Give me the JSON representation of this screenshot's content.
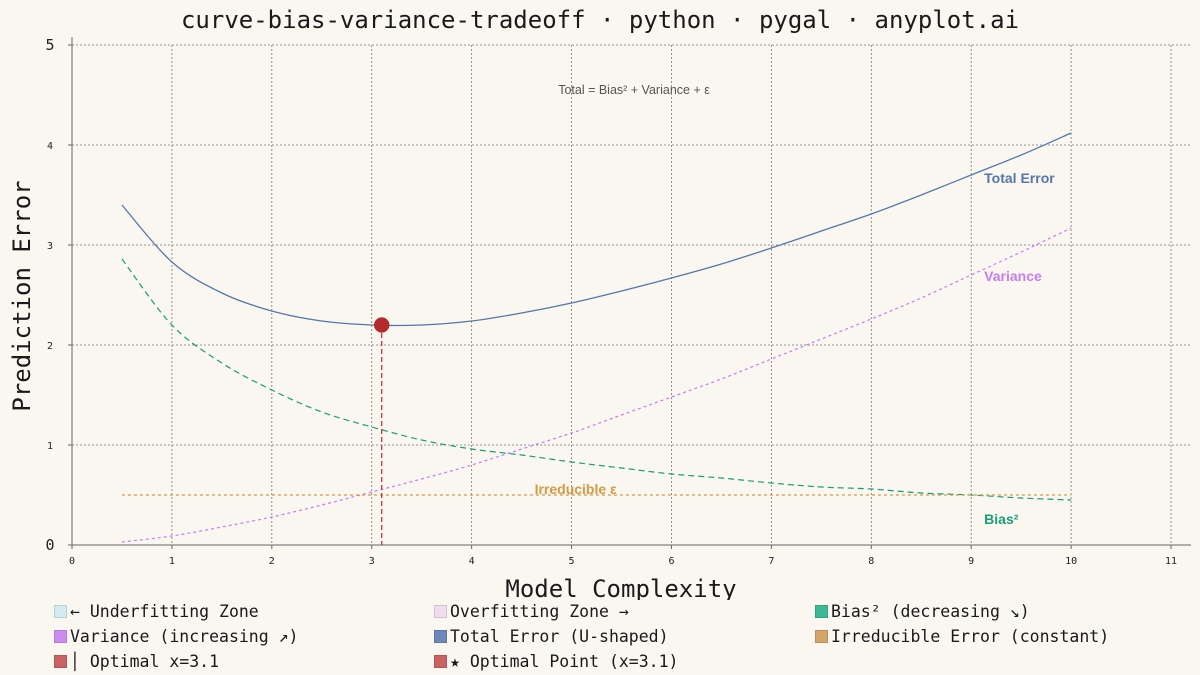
{
  "chart_data": {
    "type": "line",
    "title": "curve-bias-variance-tradeoff · python · pygal · anyplot.ai",
    "xlabel": "Model Complexity",
    "ylabel": "Prediction Error",
    "xlim": [
      0,
      11.2
    ],
    "ylim": [
      0,
      5
    ],
    "x_ticks": [
      "0",
      "1",
      "2",
      "3",
      "4",
      "5",
      "6",
      "7",
      "8",
      "9",
      "10",
      "11"
    ],
    "y_ticks": [
      "0",
      "1",
      "2",
      "3",
      "4",
      "5"
    ],
    "grid": true,
    "legend_position": "bottom",
    "annotation": "Total = Bias² + Variance + ε",
    "x": [
      0.5,
      1,
      1.5,
      2,
      2.5,
      3,
      3.5,
      4,
      4.5,
      5,
      5.5,
      6,
      6.5,
      7,
      7.5,
      8,
      8.5,
      9,
      9.5,
      10
    ],
    "series": [
      {
        "name": "Total Error (U-shaped)",
        "inline_label": "Total Error",
        "color": "#5577aa",
        "dash": "solid",
        "values": [
          3.4,
          2.83,
          2.52,
          2.34,
          2.24,
          2.2,
          2.2,
          2.24,
          2.32,
          2.42,
          2.54,
          2.67,
          2.81,
          2.97,
          3.14,
          3.31,
          3.5,
          3.7,
          3.9,
          4.12
        ]
      },
      {
        "name": "Bias² (decreasing ↘)",
        "inline_label": "Bias²",
        "color": "#1a9e77",
        "dash": "dashed",
        "values": [
          2.86,
          2.2,
          1.82,
          1.55,
          1.33,
          1.18,
          1.05,
          0.96,
          0.9,
          0.83,
          0.77,
          0.71,
          0.67,
          0.62,
          0.58,
          0.56,
          0.52,
          0.5,
          0.47,
          0.45
        ]
      },
      {
        "name": "Variance (increasing ↗)",
        "inline_label": "Variance",
        "color": "#c77df0",
        "dash": "dotted",
        "values": [
          0.03,
          0.09,
          0.18,
          0.28,
          0.4,
          0.53,
          0.66,
          0.8,
          0.96,
          1.12,
          1.3,
          1.48,
          1.66,
          1.86,
          2.06,
          2.26,
          2.47,
          2.7,
          2.93,
          3.17
        ]
      },
      {
        "name": "Irreducible Error (constant)",
        "inline_label": "Irreducible ε",
        "color": "#d49a45",
        "dash": "dotted",
        "values": [
          0.5,
          0.5,
          0.5,
          0.5,
          0.5,
          0.5,
          0.5,
          0.5,
          0.5,
          0.5,
          0.5,
          0.5,
          0.5,
          0.5,
          0.5,
          0.5,
          0.5,
          0.5,
          0.5,
          0.5
        ]
      }
    ],
    "optimal": {
      "x": 3.1,
      "y": 2.2,
      "color": "#b52b2b"
    }
  },
  "legend": [
    {
      "label": "← Underfitting Zone",
      "color": "#d3ecf2"
    },
    {
      "label": "Overfitting Zone →",
      "color": "#efdcef"
    },
    {
      "label": "Bias² (decreasing ↘)",
      "color": "#3cb894"
    },
    {
      "label": "Variance (increasing ↗)",
      "color": "#cc8cf2"
    },
    {
      "label": "Total Error (U-shaped)",
      "color": "#6c87b8"
    },
    {
      "label": "Irreducible Error (constant)",
      "color": "#d4a56a"
    },
    {
      "label": "│ Optimal x=3.1",
      "color": "#c96262"
    },
    {
      "label": "★ Optimal Point (x=3.1)",
      "color": "#c96262"
    }
  ]
}
